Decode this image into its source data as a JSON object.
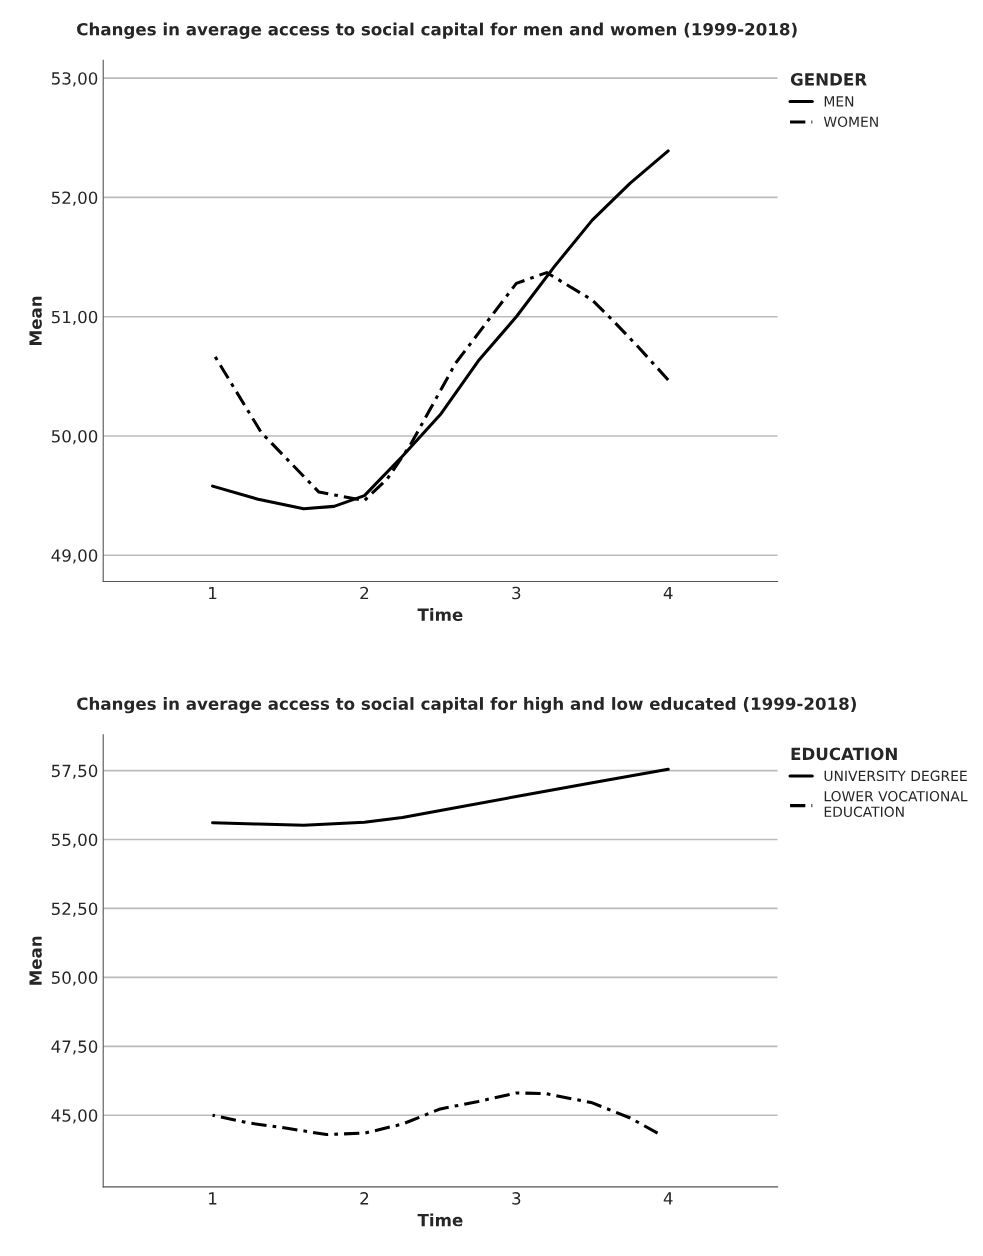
{
  "chart_data": [
    {
      "type": "line",
      "title": "Changes in average access to social capital for men and women (1999-2018)",
      "xlabel": "Time",
      "ylabel": "Mean",
      "legend_title": "GENDER",
      "legend": "top right",
      "grid": "y",
      "xlim": [
        0.28,
        4.72
      ],
      "xticks": [
        1,
        2,
        3,
        4
      ],
      "ylim": [
        48.78,
        53.15
      ],
      "yticks": [
        {
          "value": 49,
          "label": "49,00"
        },
        {
          "value": 50,
          "label": "50,00"
        },
        {
          "value": 51,
          "label": "51,00"
        },
        {
          "value": 52,
          "label": "52,00"
        },
        {
          "value": 53,
          "label": "53,00"
        }
      ],
      "series": [
        {
          "name": "MEN",
          "color": "#000000",
          "line_style": "solid",
          "x": [
            1,
            1.3,
            1.6,
            1.8,
            2,
            2.25,
            2.5,
            2.75,
            3,
            3.25,
            3.5,
            3.75,
            4
          ],
          "values": [
            49.58,
            49.47,
            49.39,
            49.41,
            49.5,
            49.83,
            50.18,
            50.63,
            51.0,
            51.42,
            51.81,
            52.12,
            52.39
          ]
        },
        {
          "name": "WOMEN",
          "color": "#000000",
          "line_style": "dashdot",
          "x": [
            1,
            1.32,
            1.7,
            2,
            2.15,
            2.3,
            2.6,
            3,
            3.2,
            3.5,
            3.65,
            3.8,
            4
          ],
          "values": [
            50.7,
            50.03,
            49.53,
            49.46,
            49.64,
            49.92,
            50.61,
            51.28,
            51.37,
            51.14,
            50.95,
            50.75,
            50.47
          ]
        }
      ]
    },
    {
      "type": "line",
      "title": "Changes in average access to social capital for high and low educated (1999-2018)",
      "xlabel": "Time",
      "ylabel": "Mean",
      "legend_title": "EDUCATION",
      "legend": "top right",
      "grid": "y",
      "xlim": [
        0.28,
        4.72
      ],
      "xticks": [
        1,
        2,
        3,
        4
      ],
      "ylim": [
        42.4,
        58.8
      ],
      "yticks": [
        {
          "value": 45,
          "label": "45,00"
        },
        {
          "value": 47.5,
          "label": "47,50"
        },
        {
          "value": 50,
          "label": "50,00"
        },
        {
          "value": 52.5,
          "label": "52,50"
        },
        {
          "value": 55,
          "label": "55,00"
        },
        {
          "value": 57.5,
          "label": "57,50"
        }
      ],
      "series": [
        {
          "name": "UNIVERSITY DEGREE",
          "color": "#000000",
          "line_style": "solid",
          "x": [
            1,
            1.3,
            1.6,
            2,
            2.25,
            2.5,
            3,
            3.5,
            4
          ],
          "values": [
            55.61,
            55.56,
            55.52,
            55.63,
            55.8,
            56.05,
            56.56,
            57.06,
            57.55
          ]
        },
        {
          "name": "LOWER VOCATIONAL\nEDUCATION",
          "color": "#000000",
          "line_style": "dashdot",
          "x": [
            1,
            1.25,
            1.5,
            1.75,
            2,
            2.25,
            2.5,
            2.75,
            3,
            3.2,
            3.5,
            3.75,
            3.93
          ],
          "values": [
            45.0,
            44.71,
            44.52,
            44.3,
            44.35,
            44.68,
            45.23,
            45.5,
            45.81,
            45.78,
            45.45,
            44.9,
            44.35
          ]
        }
      ]
    }
  ]
}
